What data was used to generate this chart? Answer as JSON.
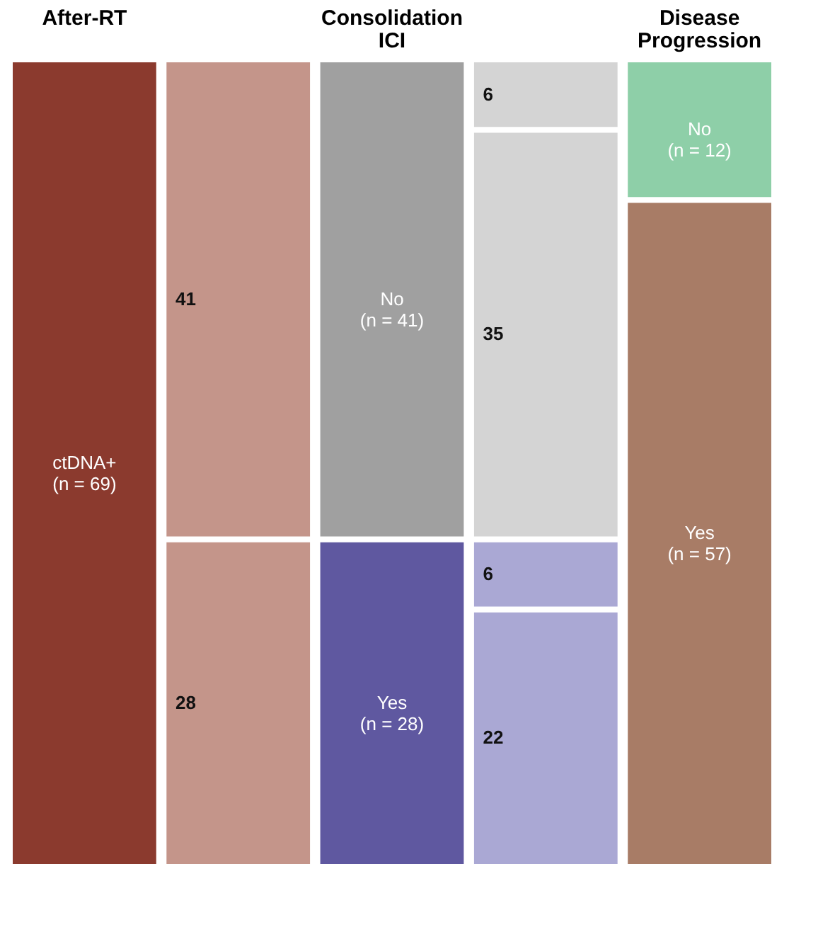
{
  "chart_data": {
    "type": "bar",
    "stacked": true,
    "categories": [
      "After-RT",
      null,
      "Consolidation\nICI",
      null,
      "Disease\nProgression"
    ],
    "series": [
      {
        "values": [
          69,
          28,
          28,
          22,
          57
        ],
        "colors": [
          "#8b3a2e",
          "#c4958a",
          "#5f58a0",
          "#aaa8d4",
          "#a87c66"
        ],
        "value_labels": [
          "ctDNA+\n(n = 69)",
          "28",
          "Yes\n(n = 28)",
          "22",
          "Yes\n(n = 57)"
        ]
      },
      {
        "values": [
          null,
          41,
          41,
          6,
          12
        ],
        "colors": [
          null,
          "#c4958a",
          "#a0a0a0",
          "#aaa8d4",
          "#8ecfa8"
        ],
        "value_labels": [
          null,
          "41",
          "No\n(n = 41)",
          "6",
          "No\n(n = 12)"
        ]
      },
      {
        "values": [
          null,
          null,
          null,
          35,
          null
        ],
        "colors": [
          null,
          null,
          null,
          "#d4d4d4",
          null
        ],
        "value_labels": [
          null,
          null,
          null,
          "35",
          null
        ]
      },
      {
        "values": [
          null,
          null,
          null,
          6,
          null
        ],
        "colors": [
          null,
          null,
          null,
          "#d4d4d4",
          null
        ],
        "value_labels": [
          null,
          null,
          null,
          "6",
          null
        ]
      }
    ]
  }
}
